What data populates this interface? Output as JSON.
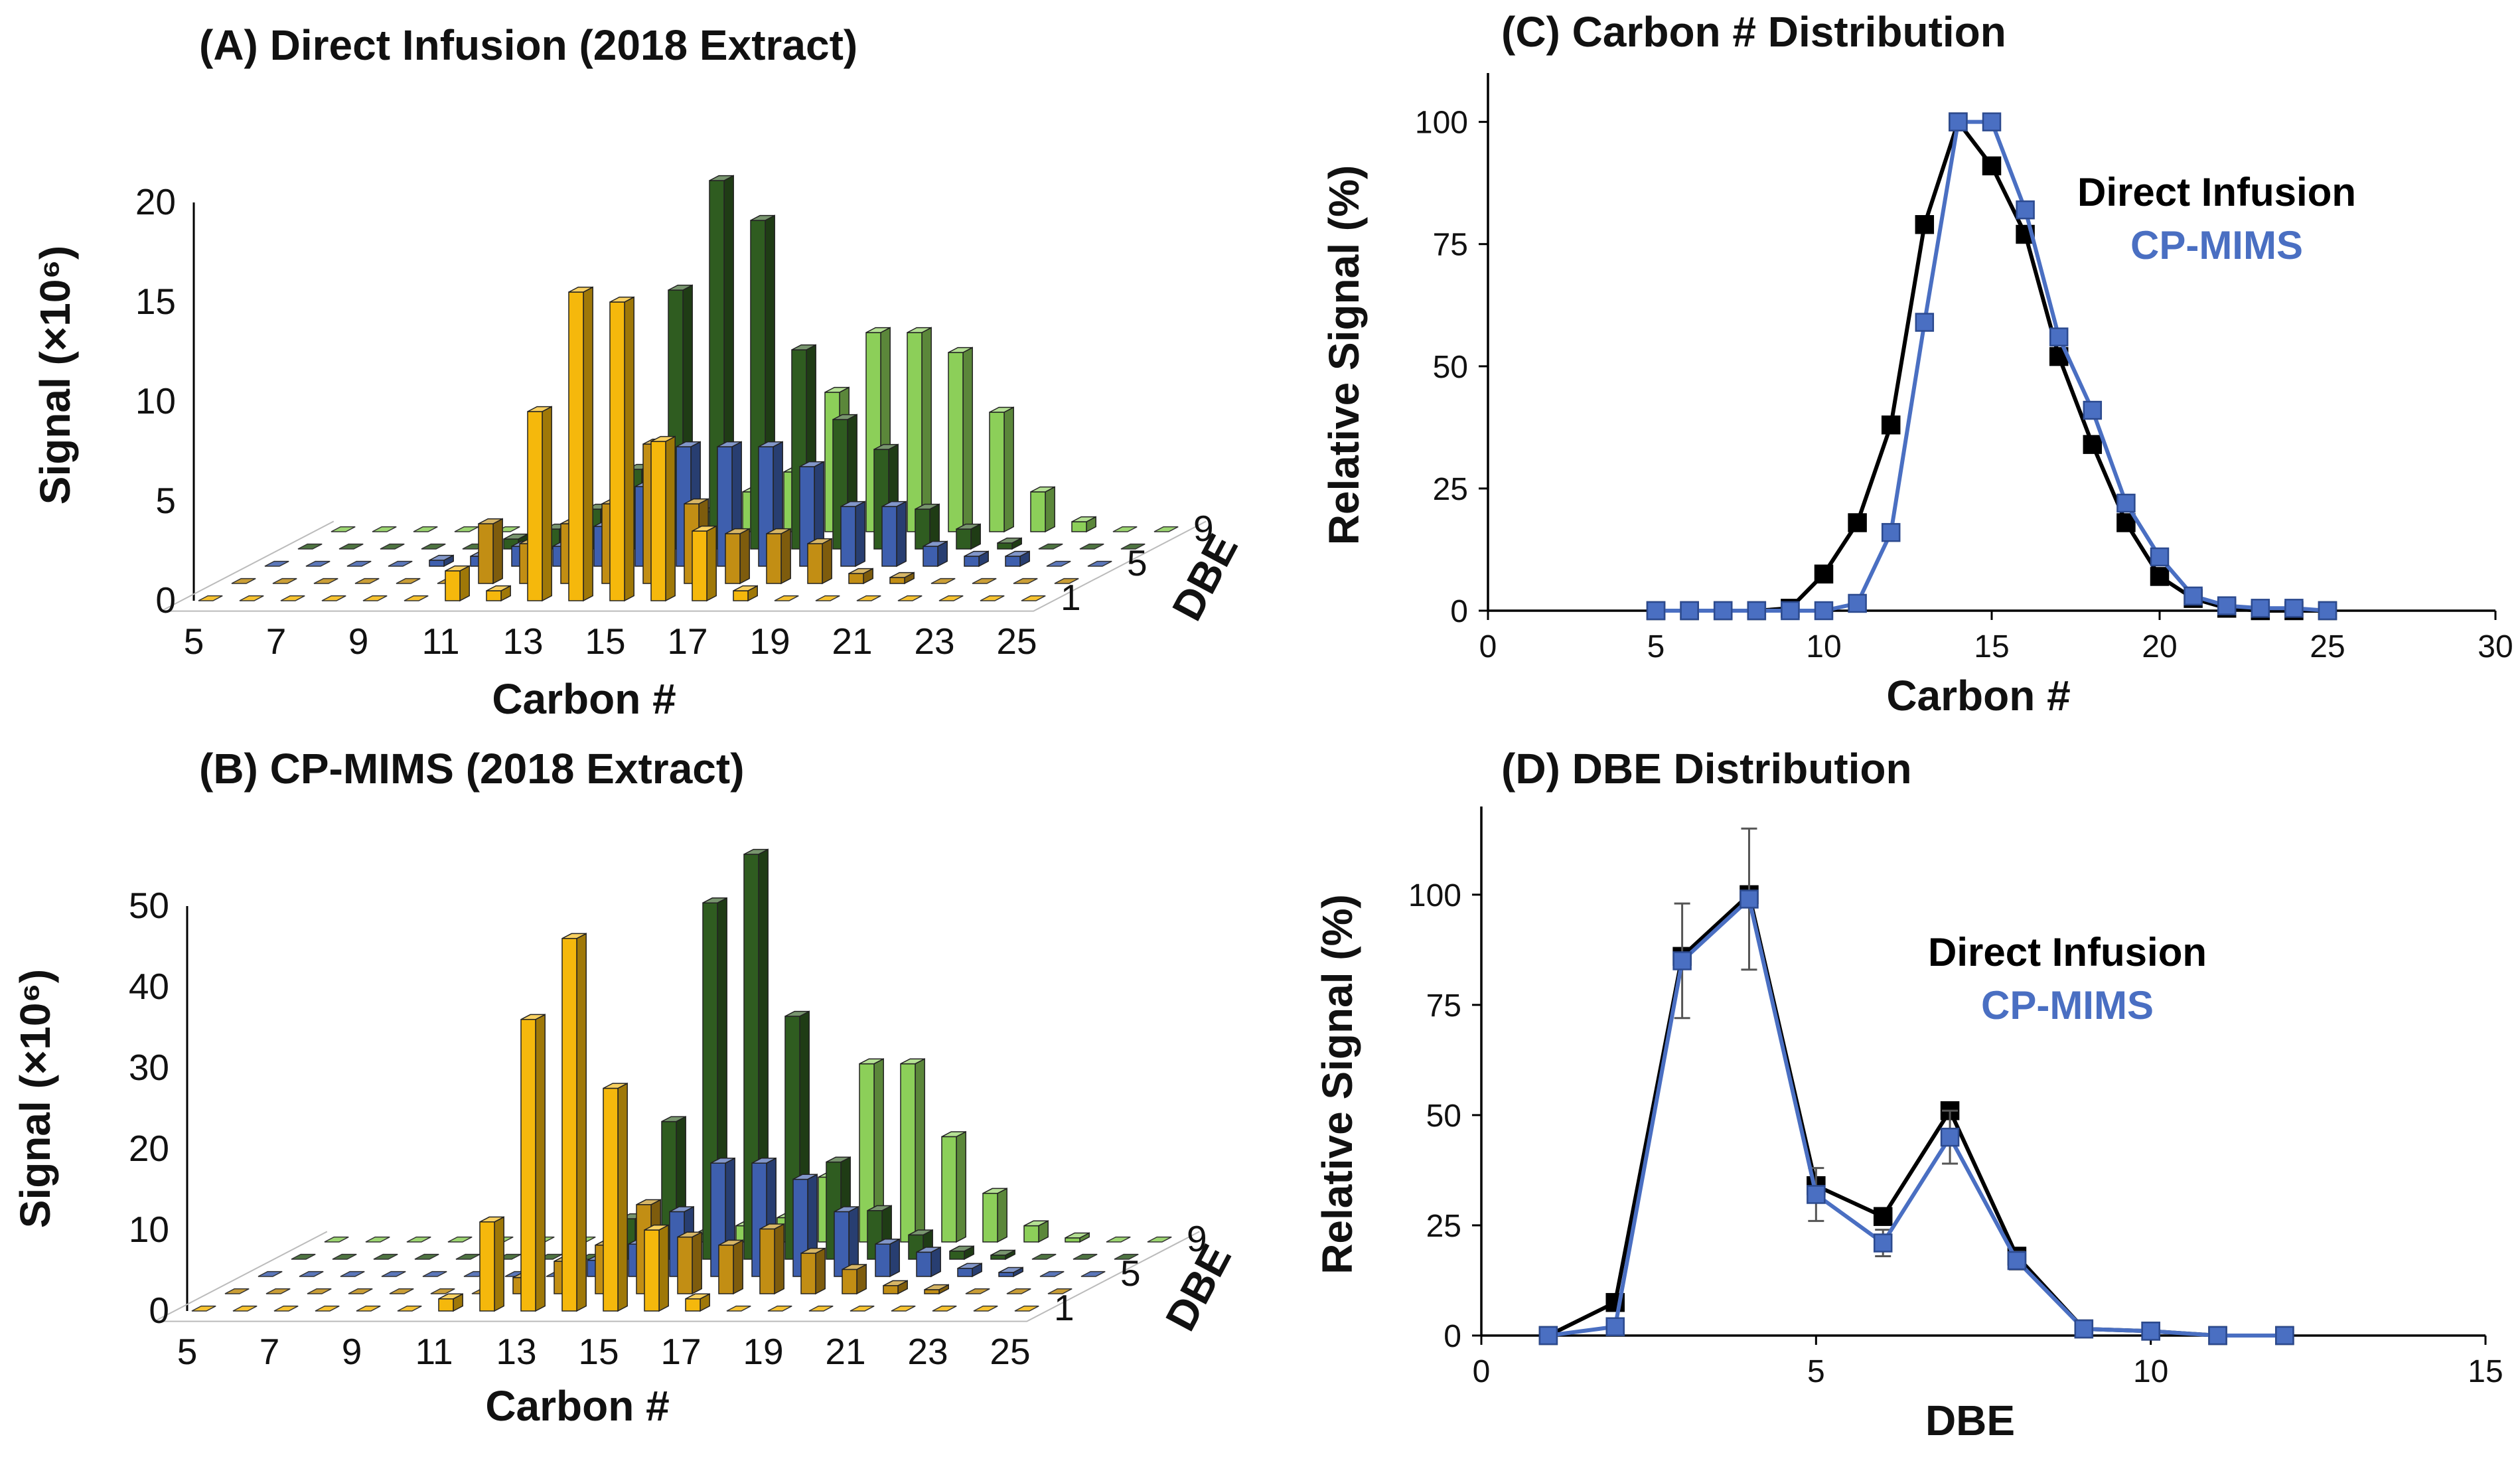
{
  "colors": {
    "direct_infusion": "#000000",
    "cp_mims": "#4a6fc2",
    "dbe_1": "#f5b80c",
    "dbe_3": "#c28e14",
    "dbe_5": "#3e5fae",
    "dbe_7": "#2f5c20",
    "dbe_9": "#8ccf59",
    "floor": "#ffffff",
    "axis": "#000000",
    "error_bar": "#555555"
  },
  "chart_data": [
    {
      "id": "A",
      "type": "bar3d",
      "title": "(A) Direct Infusion (2018 Extract)",
      "xlabel": "Carbon #",
      "ylabel": "Signal (×10⁶)",
      "zlabel": "DBE",
      "x": [
        5,
        6,
        7,
        8,
        9,
        10,
        11,
        12,
        13,
        14,
        15,
        16,
        17,
        18,
        19,
        20,
        21,
        22,
        23,
        24,
        25
      ],
      "x_ticks": [
        5,
        7,
        9,
        11,
        13,
        15,
        17,
        19,
        21,
        23,
        25
      ],
      "y_ticks": [
        0,
        5,
        10,
        15,
        20
      ],
      "z_ticks": [
        1,
        5,
        9
      ],
      "ylim": [
        0,
        20
      ],
      "series": [
        {
          "dbe": 1,
          "values": [
            0,
            0,
            0,
            0,
            0,
            0,
            1.5,
            0.5,
            9.5,
            15.5,
            15,
            8,
            3.5,
            0.5,
            0,
            0,
            0,
            0,
            0,
            0,
            0
          ]
        },
        {
          "dbe": 3,
          "values": [
            0,
            0,
            0,
            0,
            0,
            0,
            3,
            2,
            3,
            4,
            7,
            4,
            2.5,
            2.5,
            2,
            0.5,
            0.3,
            0,
            0,
            0,
            0
          ]
        },
        {
          "dbe": 5,
          "values": [
            0,
            0,
            0,
            0,
            0.3,
            0.5,
            1,
            1,
            2,
            4,
            6,
            6,
            6,
            5,
            3,
            3,
            1,
            0.5,
            0.5,
            0,
            0
          ]
        },
        {
          "dbe": 7,
          "values": [
            0,
            0,
            0,
            0,
            0,
            0.5,
            1,
            2,
            4,
            13,
            18.5,
            16.5,
            10,
            6.5,
            5,
            2,
            1,
            0.3,
            0,
            0,
            0
          ]
        },
        {
          "dbe": 9,
          "values": [
            0,
            0,
            0,
            0,
            0,
            0,
            0,
            0,
            1,
            1,
            2,
            3,
            7,
            10,
            10,
            9,
            6,
            2,
            0.5,
            0,
            0
          ]
        }
      ]
    },
    {
      "id": "B",
      "type": "bar3d",
      "title": "(B) CP-MIMS (2018 Extract)",
      "xlabel": "Carbon #",
      "ylabel": "Signal (×10⁶)",
      "zlabel": "DBE",
      "x": [
        5,
        6,
        7,
        8,
        9,
        10,
        11,
        12,
        13,
        14,
        15,
        16,
        17,
        18,
        19,
        20,
        21,
        22,
        23,
        24,
        25
      ],
      "x_ticks": [
        5,
        7,
        9,
        11,
        13,
        15,
        17,
        19,
        21,
        23,
        25
      ],
      "y_ticks": [
        0,
        10,
        20,
        30,
        40,
        50
      ],
      "z_ticks": [
        1,
        5,
        9
      ],
      "ylim": [
        0,
        50
      ],
      "series": [
        {
          "dbe": 1,
          "values": [
            0,
            0,
            0,
            0,
            0,
            0,
            1.5,
            11,
            36,
            46,
            27.5,
            10,
            1.5,
            0,
            0,
            0,
            0,
            0,
            0,
            0,
            0
          ]
        },
        {
          "dbe": 3,
          "values": [
            0,
            0,
            0,
            0,
            0,
            0,
            0,
            2,
            4,
            6,
            11,
            7,
            6,
            8,
            5,
            3,
            1,
            0.5,
            0,
            0,
            0
          ]
        },
        {
          "dbe": 5,
          "values": [
            0,
            0,
            0,
            0,
            0,
            0,
            0,
            0,
            2,
            4,
            8,
            14,
            14,
            12,
            8,
            4,
            3,
            1,
            0.5,
            0,
            0
          ]
        },
        {
          "dbe": 7,
          "values": [
            0,
            0,
            0,
            0,
            0,
            0,
            0,
            0,
            5,
            17,
            44,
            50,
            30,
            12,
            6,
            3,
            1,
            0.5,
            0,
            0,
            0
          ]
        },
        {
          "dbe": 9,
          "values": [
            0,
            0,
            0,
            0,
            0,
            0,
            0,
            0,
            0,
            1,
            2,
            3,
            8,
            22,
            22,
            13,
            6,
            2,
            0.5,
            0,
            0
          ]
        }
      ]
    },
    {
      "id": "C",
      "type": "line",
      "title": "(C) Carbon # Distribution",
      "xlabel": "Carbon #",
      "ylabel": "Relative Signal (%)",
      "xlim": [
        0,
        30
      ],
      "ylim": [
        0,
        110
      ],
      "x_ticks": [
        0,
        5,
        10,
        15,
        20,
        25,
        30
      ],
      "y_ticks": [
        0,
        25,
        50,
        75,
        100
      ],
      "legend": [
        "Direct Infusion",
        "CP-MIMS"
      ],
      "series": [
        {
          "name": "Direct Infusion",
          "x": [
            5,
            6,
            7,
            8,
            9,
            10,
            11,
            12,
            13,
            14,
            15,
            16,
            17,
            18,
            19,
            20,
            21,
            22,
            23,
            24,
            25
          ],
          "y": [
            0,
            0,
            0,
            0,
            0.5,
            7.5,
            18,
            38,
            79,
            100,
            91,
            77,
            52,
            34,
            18,
            7,
            2.5,
            0.5,
            0,
            0,
            0
          ]
        },
        {
          "name": "CP-MIMS",
          "x": [
            5,
            6,
            7,
            8,
            9,
            10,
            11,
            12,
            13,
            14,
            15,
            16,
            17,
            18,
            19,
            20,
            21,
            22,
            23,
            24,
            25
          ],
          "y": [
            0,
            0,
            0,
            0,
            0,
            0,
            1.5,
            16,
            59,
            100,
            100,
            82,
            56,
            41,
            22,
            11,
            3,
            1,
            0.5,
            0.5,
            0
          ]
        }
      ]
    },
    {
      "id": "D",
      "type": "line",
      "title": "(D) DBE Distribution",
      "xlabel": "DBE",
      "ylabel": "Relative Signal (%)",
      "xlim": [
        0,
        15
      ],
      "ylim": [
        0,
        120
      ],
      "x_ticks": [
        0,
        5,
        10,
        15
      ],
      "y_ticks": [
        0,
        25,
        50,
        75,
        100
      ],
      "legend": [
        "Direct Infusion",
        "CP-MIMS"
      ],
      "series": [
        {
          "name": "Direct Infusion",
          "x": [
            1,
            2,
            3,
            4,
            5,
            6,
            7,
            8,
            9,
            10,
            11,
            12
          ],
          "y": [
            0,
            7.5,
            86,
            100,
            34,
            27,
            51,
            18,
            1.5,
            1,
            0,
            0
          ]
        },
        {
          "name": "CP-MIMS",
          "x": [
            1,
            2,
            3,
            4,
            5,
            6,
            7,
            8,
            9,
            10,
            11,
            12
          ],
          "y": [
            0,
            2,
            85,
            99,
            32,
            21,
            45,
            17,
            1.5,
            1,
            0,
            0
          ],
          "err": [
            0,
            0,
            13,
            16,
            6,
            3,
            6,
            2,
            0,
            0,
            0,
            0
          ]
        }
      ]
    }
  ]
}
